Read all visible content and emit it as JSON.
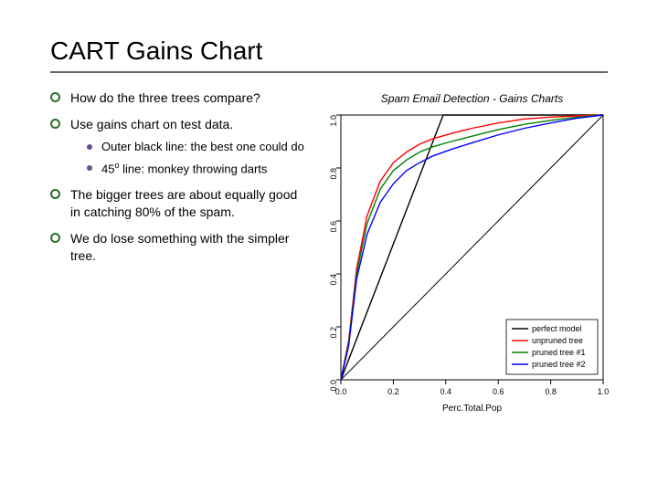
{
  "title": "CART Gains Chart",
  "bullets": {
    "b1": "How do the three trees compare?",
    "b2": "Use gains chart on test data.",
    "b2a": "Outer black line: the best one could do",
    "b2b_prefix": "45",
    "b2b_sup": "o",
    "b2b_suffix": " line: monkey throwing darts",
    "b3": "The bigger trees are about equally good in catching 80% of the spam.",
    "b4": "We do lose something with the simpler tree."
  },
  "chart": {
    "type": "line",
    "title": "Spam Email Detection - Gains Charts",
    "xlabel": "Perc.Total.Pop",
    "xlim": [
      0.0,
      1.0
    ],
    "xtick_step": 0.2,
    "xticks": [
      "0.0",
      "0.2",
      "0.4",
      "0.6",
      "0.8",
      "1.0"
    ],
    "ylim": [
      0.0,
      1.0
    ],
    "ytick_step": 0.2,
    "yticks": [
      "0.0",
      "0.2",
      "0.4",
      "0.6",
      "0.8",
      "1.0"
    ],
    "box_color": "#000000",
    "line_width": 1.4,
    "background_color": "#ffffff",
    "legend": {
      "position": "bottom-right",
      "items": [
        {
          "label": "perfect model",
          "color": "#000000"
        },
        {
          "label": "unpruned tree",
          "color": "#ff0000"
        },
        {
          "label": "pruned tree #1",
          "color": "#008000"
        },
        {
          "label": "pruned tree #2",
          "color": "#0000ff"
        }
      ]
    },
    "diagonal": {
      "color": "#000000",
      "width": 1,
      "from": [
        0,
        0
      ],
      "to": [
        1,
        1
      ]
    },
    "series": {
      "perfect": {
        "color": "#000000",
        "points": [
          [
            0,
            0
          ],
          [
            0.39,
            1.0
          ],
          [
            1.0,
            1.0
          ]
        ]
      },
      "unpruned": {
        "color": "#ff0000",
        "points": [
          [
            0,
            0
          ],
          [
            0.03,
            0.15
          ],
          [
            0.06,
            0.42
          ],
          [
            0.1,
            0.62
          ],
          [
            0.15,
            0.75
          ],
          [
            0.2,
            0.82
          ],
          [
            0.25,
            0.86
          ],
          [
            0.3,
            0.89
          ],
          [
            0.35,
            0.91
          ],
          [
            0.42,
            0.93
          ],
          [
            0.5,
            0.95
          ],
          [
            0.6,
            0.97
          ],
          [
            0.7,
            0.985
          ],
          [
            0.8,
            0.992
          ],
          [
            0.9,
            0.997
          ],
          [
            1.0,
            1.0
          ]
        ]
      },
      "pruned1": {
        "color": "#008000",
        "points": [
          [
            0,
            0
          ],
          [
            0.03,
            0.14
          ],
          [
            0.06,
            0.4
          ],
          [
            0.1,
            0.59
          ],
          [
            0.15,
            0.72
          ],
          [
            0.2,
            0.79
          ],
          [
            0.25,
            0.83
          ],
          [
            0.3,
            0.86
          ],
          [
            0.35,
            0.88
          ],
          [
            0.42,
            0.9
          ],
          [
            0.5,
            0.92
          ],
          [
            0.6,
            0.945
          ],
          [
            0.7,
            0.965
          ],
          [
            0.8,
            0.98
          ],
          [
            0.9,
            0.992
          ],
          [
            1.0,
            1.0
          ]
        ]
      },
      "pruned2": {
        "color": "#0000ff",
        "points": [
          [
            0,
            0
          ],
          [
            0.03,
            0.13
          ],
          [
            0.06,
            0.38
          ],
          [
            0.1,
            0.55
          ],
          [
            0.15,
            0.67
          ],
          [
            0.2,
            0.74
          ],
          [
            0.25,
            0.79
          ],
          [
            0.3,
            0.82
          ],
          [
            0.35,
            0.845
          ],
          [
            0.42,
            0.87
          ],
          [
            0.5,
            0.895
          ],
          [
            0.6,
            0.925
          ],
          [
            0.7,
            0.95
          ],
          [
            0.8,
            0.97
          ],
          [
            0.9,
            0.988
          ],
          [
            1.0,
            1.0
          ]
        ]
      }
    }
  }
}
